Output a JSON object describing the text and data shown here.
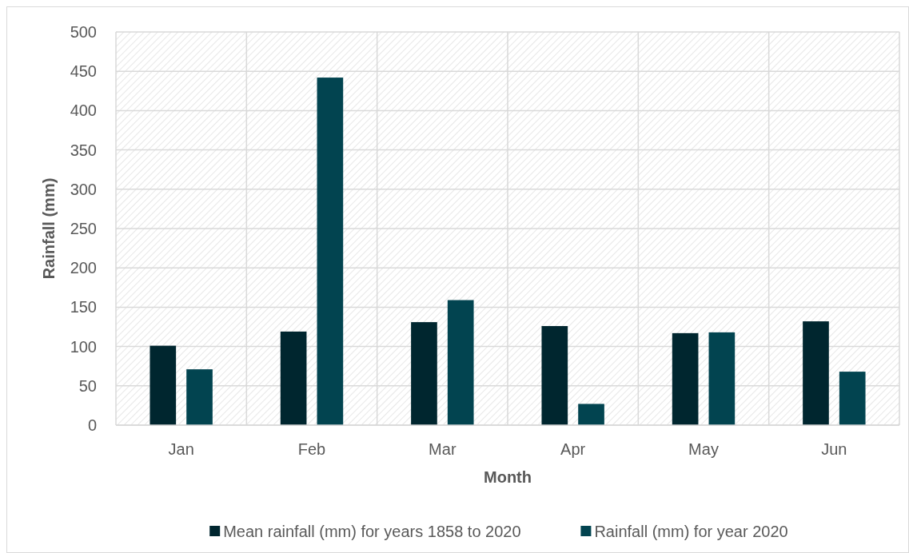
{
  "chart_data": {
    "type": "bar",
    "xlabel": "Month",
    "ylabel": "Rainfall (mm)",
    "categories": [
      "Jan",
      "Feb",
      "Mar",
      "Apr",
      "May",
      "Jun"
    ],
    "series": [
      {
        "name": "Mean rainfall (mm) for years 1858 to 2020",
        "color": "#00262f",
        "values": [
          101,
          119,
          131,
          126,
          117,
          132
        ]
      },
      {
        "name": "Rainfall (mm) for year 2020",
        "color": "#024450",
        "values": [
          71,
          442,
          159,
          27,
          118,
          68
        ]
      }
    ],
    "ylim": [
      0,
      500
    ],
    "yticks": [
      0,
      50,
      100,
      150,
      200,
      250,
      300,
      350,
      400,
      450,
      500
    ],
    "grid": true,
    "legend": "bottom"
  }
}
